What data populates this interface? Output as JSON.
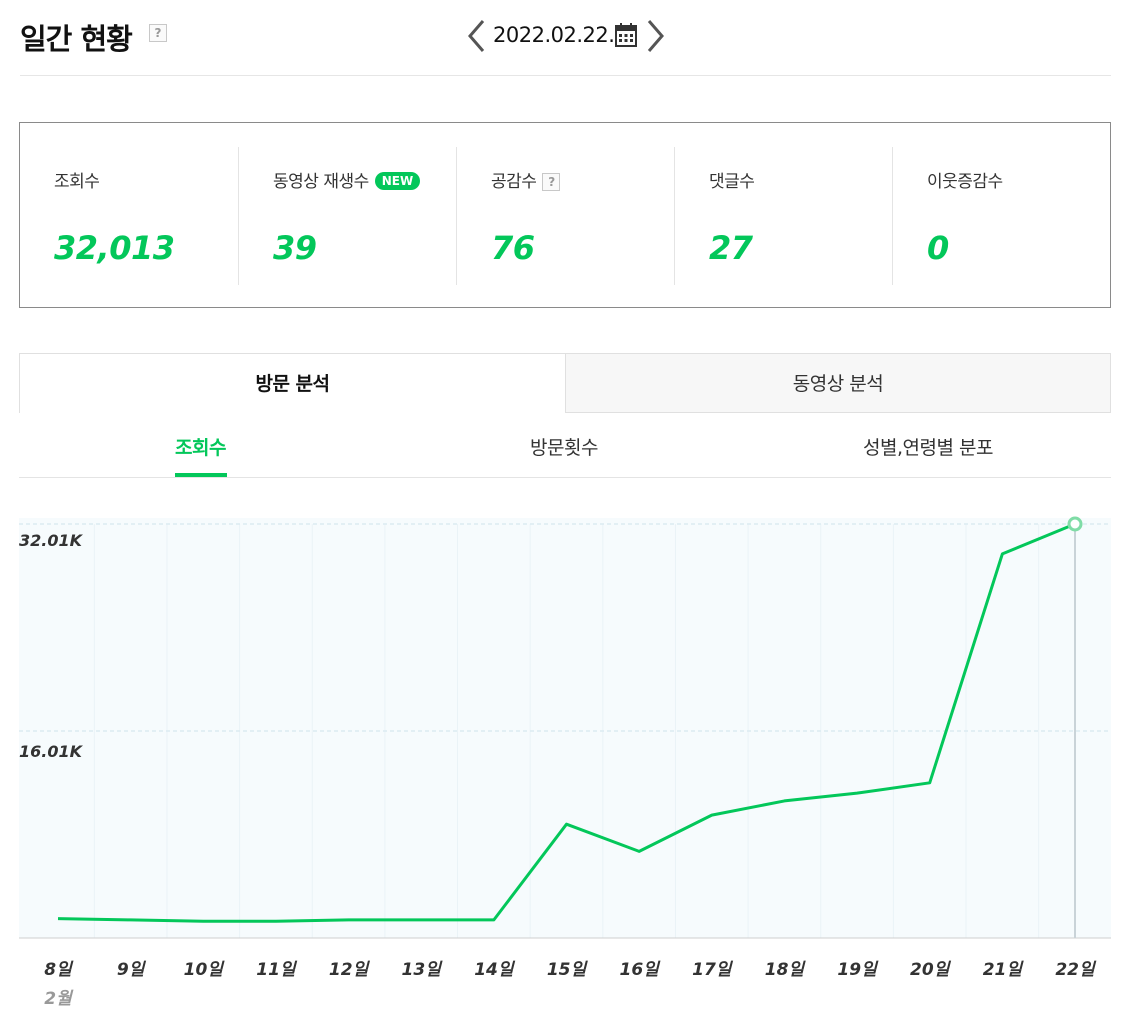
{
  "header": {
    "title": "일간 현황",
    "help_glyph": "?",
    "date": "2022.02.22.",
    "prev_icon": "chevron-left-icon",
    "next_icon": "chevron-right-icon",
    "calendar_icon": "calendar-icon"
  },
  "stats": [
    {
      "label": "조회수",
      "value": "32,013"
    },
    {
      "label": "동영상 재생수",
      "value": "39",
      "badge": "NEW"
    },
    {
      "label": "공감수",
      "value": "76",
      "help": "?"
    },
    {
      "label": "댓글수",
      "value": "27"
    },
    {
      "label": "이웃증감수",
      "value": "0"
    }
  ],
  "main_tabs": [
    {
      "label": "방문 분석",
      "active": true
    },
    {
      "label": "동영상 분석",
      "active": false
    }
  ],
  "sub_tabs": [
    {
      "label": "조회수",
      "active": true
    },
    {
      "label": "방문횟수",
      "active": false
    },
    {
      "label": "성별,연령별 분포",
      "active": false
    }
  ],
  "colors": {
    "accent": "#03c75a",
    "chart_bg": "#f6fbfd",
    "grid": "#dcebf2"
  },
  "chart_data": {
    "type": "line",
    "x": [
      "8일",
      "9일",
      "10일",
      "11일",
      "12일",
      "13일",
      "14일",
      "15일",
      "16일",
      "17일",
      "18일",
      "19일",
      "20일",
      "21일",
      "22일"
    ],
    "month_label": "2월",
    "y_ticks": [
      "16.01K",
      "32.01K"
    ],
    "y_tick_values": [
      16010,
      32010
    ],
    "ylim": [
      0,
      32013
    ],
    "grid": true,
    "series": [
      {
        "values": [
          1500,
          1400,
          1300,
          1300,
          1400,
          1400,
          1400,
          8800,
          6700,
          9500,
          10600,
          11200,
          12000,
          29700,
          32013
        ]
      }
    ],
    "highlight_last": true
  }
}
